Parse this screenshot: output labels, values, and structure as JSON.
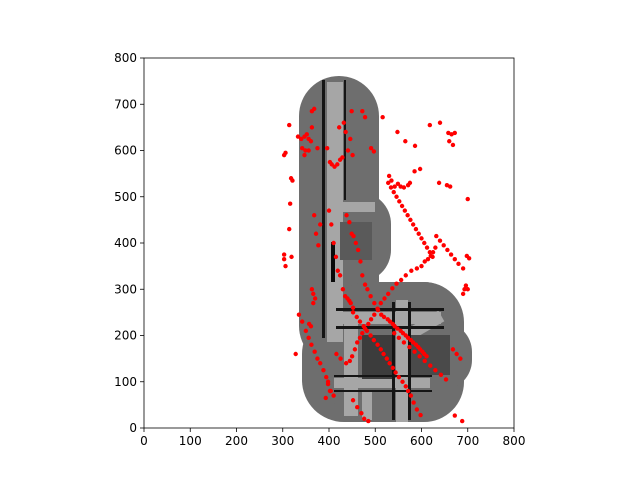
{
  "chart_data": {
    "type": "scatter",
    "title": "",
    "xlabel": "",
    "ylabel": "",
    "xlim": [
      0,
      800
    ],
    "ylim": [
      0,
      800
    ],
    "grid": false,
    "legend": "none",
    "x_ticks": [
      "0",
      "100",
      "200",
      "300",
      "400",
      "500",
      "600",
      "700",
      "800"
    ],
    "y_ticks": [
      "0",
      "100",
      "200",
      "300",
      "400",
      "500",
      "600",
      "700",
      "800"
    ],
    "background_map": "grayscale occupancy map",
    "marker_color": "#ff0000",
    "map_colors": {
      "free": "#6e6e6e",
      "corridor": "#a6a6a6",
      "wall": "#151515",
      "room": "#3c3c3c"
    },
    "series": [
      {
        "points": [
          [
            303,
            590
          ],
          [
            306,
            595
          ],
          [
            314,
            655
          ],
          [
            318,
            540
          ],
          [
            321,
            535
          ],
          [
            316,
            485
          ],
          [
            314,
            430
          ],
          [
            306,
            350
          ],
          [
            303,
            365
          ],
          [
            303,
            375
          ],
          [
            319,
            370
          ],
          [
            328,
            160
          ],
          [
            335,
            245
          ],
          [
            342,
            605
          ],
          [
            349,
            600
          ],
          [
            356,
            600
          ],
          [
            347,
            630
          ],
          [
            352,
            635
          ],
          [
            356,
            625
          ],
          [
            361,
            620
          ],
          [
            340,
            625
          ],
          [
            333,
            630
          ],
          [
            363,
            650
          ],
          [
            363,
            685
          ],
          [
            368,
            690
          ],
          [
            375,
            605
          ],
          [
            368,
            460
          ],
          [
            372,
            420
          ],
          [
            377,
            395
          ],
          [
            381,
            440
          ],
          [
            363,
            300
          ],
          [
            366,
            290
          ],
          [
            370,
            280
          ],
          [
            357,
            225
          ],
          [
            361,
            220
          ],
          [
            366,
            270
          ],
          [
            347,
            590
          ],
          [
            396,
            605
          ],
          [
            402,
            575
          ],
          [
            406,
            570
          ],
          [
            412,
            565
          ],
          [
            418,
            570
          ],
          [
            424,
            580
          ],
          [
            429,
            585
          ],
          [
            422,
            650
          ],
          [
            432,
            660
          ],
          [
            436,
            640
          ],
          [
            446,
            625
          ],
          [
            451,
            590
          ],
          [
            441,
            600
          ],
          [
            449,
            685
          ],
          [
            472,
            685
          ],
          [
            478,
            672
          ],
          [
            491,
            605
          ],
          [
            497,
            598
          ],
          [
            400,
            470
          ],
          [
            405,
            440
          ],
          [
            410,
            400
          ],
          [
            415,
            370
          ],
          [
            419,
            340
          ],
          [
            424,
            330
          ],
          [
            430,
            300
          ],
          [
            435,
            285
          ],
          [
            440,
            280
          ],
          [
            444,
            275
          ],
          [
            447,
            270
          ],
          [
            452,
            260
          ],
          [
            438,
            460
          ],
          [
            444,
            445
          ],
          [
            449,
            420
          ],
          [
            453,
            415
          ],
          [
            458,
            400
          ],
          [
            463,
            385
          ],
          [
            468,
            360
          ],
          [
            472,
            330
          ],
          [
            478,
            310
          ],
          [
            483,
            300
          ],
          [
            490,
            285
          ],
          [
            498,
            270
          ],
          [
            506,
            255
          ],
          [
            513,
            245
          ],
          [
            519,
            240
          ],
          [
            527,
            235
          ],
          [
            532,
            230
          ],
          [
            538,
            225
          ],
          [
            542,
            220
          ],
          [
            548,
            215
          ],
          [
            555,
            210
          ],
          [
            560,
            205
          ],
          [
            566,
            200
          ],
          [
            571,
            195
          ],
          [
            577,
            190
          ],
          [
            582,
            185
          ],
          [
            588,
            180
          ],
          [
            593,
            175
          ],
          [
            597,
            170
          ],
          [
            602,
            165
          ],
          [
            606,
            160
          ],
          [
            611,
            155
          ],
          [
            342,
            230
          ],
          [
            350,
            210
          ],
          [
            356,
            195
          ],
          [
            362,
            180
          ],
          [
            369,
            165
          ],
          [
            375,
            150
          ],
          [
            381,
            140
          ],
          [
            388,
            125
          ],
          [
            394,
            110
          ],
          [
            398,
            95
          ],
          [
            404,
            80
          ],
          [
            410,
            70
          ],
          [
            445,
            145
          ],
          [
            450,
            155
          ],
          [
            456,
            170
          ],
          [
            461,
            185
          ],
          [
            467,
            195
          ],
          [
            472,
            205
          ],
          [
            478,
            215
          ],
          [
            485,
            225
          ],
          [
            491,
            235
          ],
          [
            498,
            245
          ],
          [
            505,
            258
          ],
          [
            512,
            270
          ],
          [
            520,
            280
          ],
          [
            528,
            290
          ],
          [
            537,
            302
          ],
          [
            546,
            312
          ],
          [
            556,
            320
          ],
          [
            566,
            330
          ],
          [
            578,
            340
          ],
          [
            590,
            345
          ],
          [
            600,
            350
          ],
          [
            607,
            360
          ],
          [
            614,
            365
          ],
          [
            620,
            372
          ],
          [
            625,
            380
          ],
          [
            630,
            390
          ],
          [
            528,
            530
          ],
          [
            534,
            520
          ],
          [
            540,
            510
          ],
          [
            546,
            500
          ],
          [
            552,
            490
          ],
          [
            558,
            480
          ],
          [
            564,
            470
          ],
          [
            570,
            460
          ],
          [
            576,
            450
          ],
          [
            582,
            440
          ],
          [
            588,
            430
          ],
          [
            594,
            420
          ],
          [
            600,
            410
          ],
          [
            606,
            400
          ],
          [
            612,
            390
          ],
          [
            618,
            380
          ],
          [
            624,
            370
          ],
          [
            516,
            672
          ],
          [
            548,
            640
          ],
          [
            565,
            620
          ],
          [
            586,
            610
          ],
          [
            597,
            560
          ],
          [
            585,
            555
          ],
          [
            575,
            530
          ],
          [
            571,
            525
          ],
          [
            562,
            520
          ],
          [
            555,
            522
          ],
          [
            549,
            528
          ],
          [
            542,
            522
          ],
          [
            535,
            535
          ],
          [
            530,
            545
          ],
          [
            618,
            655
          ],
          [
            640,
            660
          ],
          [
            658,
            638
          ],
          [
            665,
            635
          ],
          [
            672,
            638
          ],
          [
            660,
            620
          ],
          [
            668,
            612
          ],
          [
            638,
            530
          ],
          [
            655,
            525
          ],
          [
            662,
            522
          ],
          [
            700,
            495
          ],
          [
            632,
            415
          ],
          [
            640,
            405
          ],
          [
            648,
            395
          ],
          [
            656,
            385
          ],
          [
            664,
            375
          ],
          [
            672,
            365
          ],
          [
            680,
            355
          ],
          [
            690,
            345
          ],
          [
            698,
            372
          ],
          [
            703,
            367
          ],
          [
            696,
            308
          ],
          [
            693,
            300
          ],
          [
            690,
            290
          ],
          [
            700,
            300
          ],
          [
            668,
            170
          ],
          [
            676,
            160
          ],
          [
            684,
            150
          ],
          [
            672,
            27
          ],
          [
            688,
            15
          ],
          [
            598,
            28
          ],
          [
            590,
            40
          ],
          [
            583,
            55
          ],
          [
            577,
            70
          ],
          [
            571,
            80
          ],
          [
            566,
            90
          ],
          [
            559,
            100
          ],
          [
            551,
            110
          ],
          [
            544,
            120
          ],
          [
            538,
            130
          ],
          [
            531,
            140
          ],
          [
            525,
            150
          ],
          [
            518,
            160
          ],
          [
            512,
            170
          ],
          [
            505,
            180
          ],
          [
            497,
            190
          ],
          [
            490,
            200
          ],
          [
            482,
            210
          ],
          [
            475,
            220
          ],
          [
            467,
            230
          ],
          [
            460,
            240
          ],
          [
            452,
            250
          ],
          [
            393,
            65
          ],
          [
            402,
            80
          ],
          [
            398,
            100
          ],
          [
            416,
            160
          ],
          [
            425,
            150
          ],
          [
            437,
            140
          ],
          [
            452,
            60
          ],
          [
            461,
            45
          ],
          [
            470,
            32
          ],
          [
            476,
            20
          ],
          [
            485,
            15
          ],
          [
            541,
            205
          ],
          [
            551,
            195
          ],
          [
            562,
            185
          ],
          [
            574,
            175
          ],
          [
            585,
            165
          ],
          [
            596,
            155
          ],
          [
            607,
            145
          ],
          [
            619,
            135
          ],
          [
            630,
            125
          ],
          [
            642,
            115
          ],
          [
            653,
            105
          ]
        ]
      }
    ]
  }
}
